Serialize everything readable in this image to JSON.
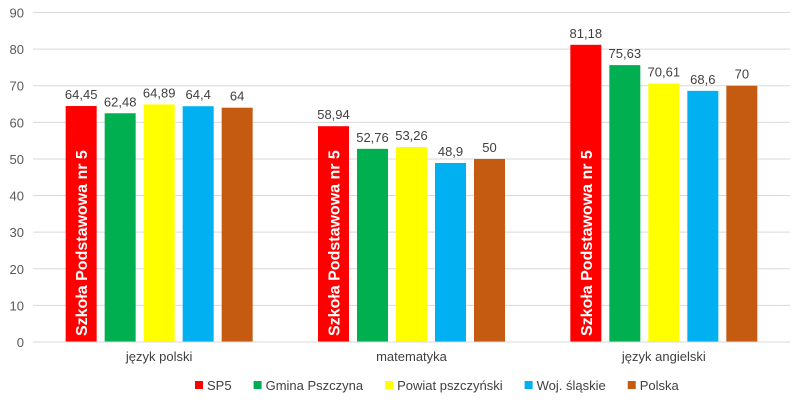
{
  "chart_data": {
    "type": "bar",
    "categories": [
      "język polski",
      "matematyka",
      "język angielski"
    ],
    "series": [
      {
        "name": "SP5",
        "color": "#ff0000",
        "values": [
          64.45,
          58.94,
          81.18
        ],
        "labels": [
          "64,45",
          "58,94",
          "81,18"
        ]
      },
      {
        "name": "Gmina Pszczyna",
        "color": "#00b050",
        "values": [
          62.48,
          52.76,
          75.63
        ],
        "labels": [
          "62,48",
          "52,76",
          "75,63"
        ]
      },
      {
        "name": "Powiat pszczyński",
        "color": "#ffff00",
        "values": [
          64.89,
          53.26,
          70.61
        ],
        "labels": [
          "64,89",
          "53,26",
          "70,61"
        ]
      },
      {
        "name": "Woj. śląskie",
        "color": "#00b0f0",
        "values": [
          64.4,
          48.9,
          68.6
        ],
        "labels": [
          "64,4",
          "48,9",
          "68,6"
        ]
      },
      {
        "name": "Polska",
        "color": "#c55a11",
        "values": [
          64,
          50,
          70
        ],
        "labels": [
          "64",
          "50",
          "70"
        ]
      }
    ],
    "bar_annotation": "Szkoła Podstawowa nr 5",
    "ylim": [
      0,
      90
    ],
    "yticks": [
      0,
      10,
      20,
      30,
      40,
      50,
      60,
      70,
      80,
      90
    ],
    "grid": true,
    "legend_position": "bottom"
  }
}
